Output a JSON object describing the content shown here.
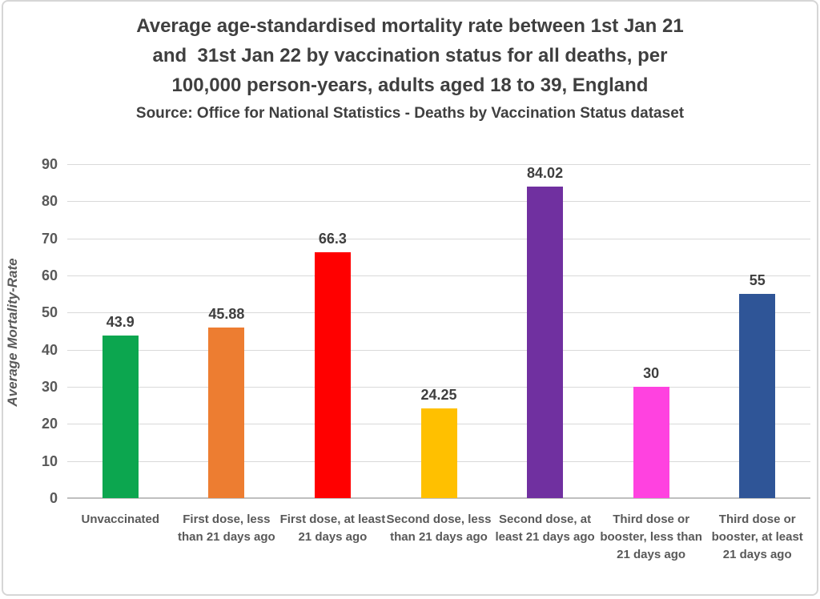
{
  "header": {
    "title_lines": [
      "Average age-standardised mortality rate between 1st Jan 21",
      "and  31st Jan 22 by vaccination status for all deaths, per",
      "100,000 person-years, adults aged 18 to 39, England"
    ],
    "source": "Source: Office for National Statistics - Deaths by Vaccination Status dataset"
  },
  "chart_data": {
    "type": "bar",
    "title": "Average age-standardised mortality rate between 1st Jan 21 and 31st Jan 22 by vaccination status for all deaths, per 100,000 person-years, adults aged 18 to 39, England",
    "subtitle": "Source: Office for National Statistics - Deaths by Vaccination Status dataset",
    "xlabel": "",
    "ylabel": "Average Mortality-Rate",
    "ylim": [
      0,
      90
    ],
    "yticks": [
      0,
      10,
      20,
      30,
      40,
      50,
      60,
      70,
      80,
      90
    ],
    "grid": true,
    "legend": "none",
    "categories": [
      "Unvaccinated",
      "First dose, less than 21 days ago",
      "First dose, at least 21 days ago",
      "Second dose, less than 21 days ago",
      "Second dose, at least 21 days ago",
      "Third dose or booster, less than 21 days ago",
      "Third dose or booster, at least 21 days ago"
    ],
    "values": [
      43.9,
      45.88,
      66.3,
      24.25,
      84.02,
      30,
      55
    ],
    "value_labels": [
      "43.9",
      "45.88",
      "66.3",
      "24.25",
      "84.02",
      "30",
      "55"
    ],
    "bar_colors": [
      "#0CA64F",
      "#ED7D31",
      "#FF0000",
      "#FFC000",
      "#7030A0",
      "#FF42E0",
      "#2F5597"
    ],
    "gridline_color": "#d9d9d9",
    "axis_line_color": "#bfbfbf",
    "text_color": "#3f3f3f",
    "axis_text_color": "#595959"
  }
}
